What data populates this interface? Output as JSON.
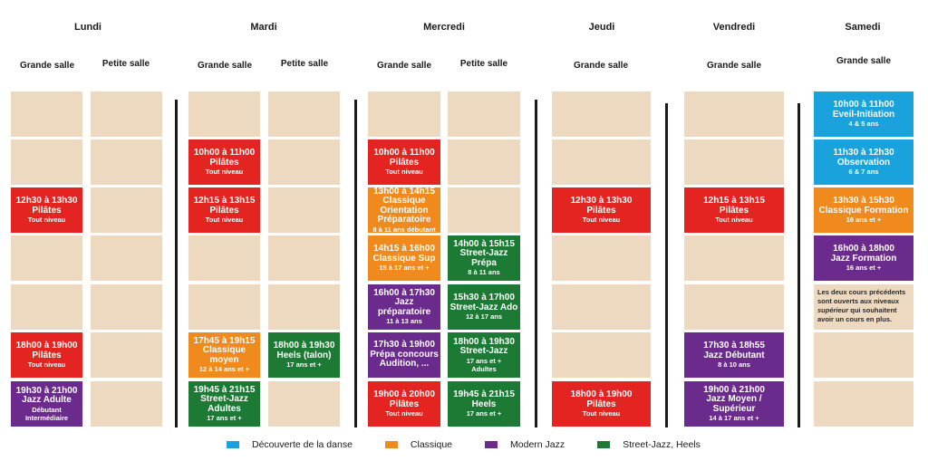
{
  "colors": {
    "empty": "#edd9c0",
    "decouverte": "#1aa2dc",
    "classique": "#f08a1c",
    "modern_jazz": "#6b2b8c",
    "street_jazz": "#1d7a34",
    "pilates": "#e32420"
  },
  "days": [
    "Lundi",
    "Mardi",
    "Mercredi",
    "Jeudi",
    "Vendredi",
    "Samedi"
  ],
  "rooms": {
    "grande": "Grande salle",
    "petite": "Petite salle"
  },
  "courses": [
    {
      "id": "lun-pil-1",
      "time": "12h30 à 13h30",
      "name": "Pilâtes",
      "sub": [
        "Tout niveau"
      ],
      "cat": "pilates"
    },
    {
      "id": "lun-pil-2",
      "time": "18h00 à 19h00",
      "name": "Pilâtes",
      "sub": [
        "Tout niveau"
      ],
      "cat": "pilates"
    },
    {
      "id": "lun-jazz",
      "time": "19h30 à 21h00",
      "name": "Jazz Adulte",
      "sub": [
        "Débutant",
        "Intermédiaire"
      ],
      "cat": "modern_jazz"
    },
    {
      "id": "mar-pil-1",
      "time": "10h00 à 11h00",
      "name": "Pilâtes",
      "sub": [
        "Tout niveau"
      ],
      "cat": "pilates"
    },
    {
      "id": "mar-pil-2",
      "time": "12h15 à 13h15",
      "name": "Pilâtes",
      "sub": [
        "Tout niveau"
      ],
      "cat": "pilates"
    },
    {
      "id": "mar-classique",
      "time": "17h45 à 19h15",
      "name": "Classique moyen",
      "sub": [
        "12 à 14 ans et +"
      ],
      "cat": "classique"
    },
    {
      "id": "mar-street",
      "time": "19h45 à 21h15",
      "name": "Street-Jazz Adultes",
      "sub": [
        "17 ans et +"
      ],
      "cat": "street_jazz"
    },
    {
      "id": "mar-heels",
      "time": "18h00 à 19h30",
      "name": "Heels (talon)",
      "sub": [
        "17 ans et +"
      ],
      "cat": "street_jazz"
    },
    {
      "id": "mer-pil-1",
      "time": "10h00 à 11h00",
      "name": "Pilâtes",
      "sub": [
        "Tout niveau"
      ],
      "cat": "pilates"
    },
    {
      "id": "mer-classique-orient",
      "time": "13h00 à 14h15",
      "name": "Classique Orientation Préparatoire",
      "sub": [
        "8 à 11 ans débutant"
      ],
      "cat": "classique"
    },
    {
      "id": "mer-classique-sup",
      "time": "14h15 à 16h00",
      "name": "Classique Sup",
      "sub": [
        "15 à 17 ans et +"
      ],
      "cat": "classique"
    },
    {
      "id": "mer-jazz-prep",
      "time": "16h00 à 17h30",
      "name": "Jazz préparatoire",
      "sub": [
        "11 à 13 ans"
      ],
      "cat": "modern_jazz"
    },
    {
      "id": "mer-prepa",
      "time": "17h30 à 19h00",
      "name": "Prépa concours Audition, ...",
      "sub": [],
      "cat": "modern_jazz"
    },
    {
      "id": "mer-pil-2",
      "time": "19h00 à 20h00",
      "name": "Pilâtes",
      "sub": [
        "Tout niveau"
      ],
      "cat": "pilates"
    },
    {
      "id": "mer-street-prepa",
      "time": "14h00 à 15h15",
      "name": "Street-Jazz Prépa",
      "sub": [
        "8 à 11 ans"
      ],
      "cat": "street_jazz"
    },
    {
      "id": "mer-street-ado",
      "time": "15h30 à 17h00",
      "name": "Street-Jazz Ado",
      "sub": [
        "12 à 17 ans"
      ],
      "cat": "street_jazz"
    },
    {
      "id": "mer-street-adultes",
      "time": "18h00 à 19h30",
      "name": "Street-Jazz",
      "sub": [
        "17 ans et +",
        "Adultes"
      ],
      "cat": "street_jazz"
    },
    {
      "id": "mer-heels",
      "time": "19h45 à 21h15",
      "name": "Heels",
      "sub": [
        "17 ans et +"
      ],
      "cat": "street_jazz"
    },
    {
      "id": "jeu-pil-1",
      "time": "12h30 à 13h30",
      "name": "Pilâtes",
      "sub": [
        "Tout niveau"
      ],
      "cat": "pilates"
    },
    {
      "id": "jeu-pil-2",
      "time": "18h00 à 19h00",
      "name": "Pilâtes",
      "sub": [
        "Tout niveau"
      ],
      "cat": "pilates"
    },
    {
      "id": "ven-pil",
      "time": "12h15 à 13h15",
      "name": "Pilâtes",
      "sub": [
        "Tout niveau"
      ],
      "cat": "pilates"
    },
    {
      "id": "ven-jazz-deb",
      "time": "17h30 à 18h55",
      "name": "Jazz Débutant",
      "sub": [
        "8 à 10 ans"
      ],
      "cat": "modern_jazz"
    },
    {
      "id": "ven-jazz-moy",
      "time": "19h00 à 21h00",
      "name": "Jazz Moyen / Supérieur",
      "sub": [
        "14 à 17 ans et +"
      ],
      "cat": "modern_jazz"
    },
    {
      "id": "sam-eveil",
      "time": "10h00 à 11h00",
      "name": "Eveil-Initiation",
      "sub": [
        "4 & 5 ans"
      ],
      "cat": "decouverte"
    },
    {
      "id": "sam-obs",
      "time": "11h30 à 12h30",
      "name": "Observation",
      "sub": [
        "6 & 7 ans"
      ],
      "cat": "decouverte"
    },
    {
      "id": "sam-classique",
      "time": "13h30 à 15h30",
      "name": "Classique Formation",
      "sub": [
        "16 ans et +"
      ],
      "cat": "classique"
    },
    {
      "id": "sam-jazz",
      "time": "16h00 à 18h00",
      "name": "Jazz Formation",
      "sub": [
        "16 ans et +"
      ],
      "cat": "modern_jazz"
    }
  ],
  "note": {
    "before": "Les deux cours précédents sont ouverts aux niveaux ",
    "emph": "supérieur",
    "after": " qui souhaitent avoir un cours en plus."
  },
  "legend": [
    {
      "label": "Découverte de la danse",
      "cat": "decouverte"
    },
    {
      "label": "Classique",
      "cat": "classique"
    },
    {
      "label": "Modern Jazz",
      "cat": "modern_jazz"
    },
    {
      "label": "Street-Jazz, Heels",
      "cat": "street_jazz"
    }
  ]
}
